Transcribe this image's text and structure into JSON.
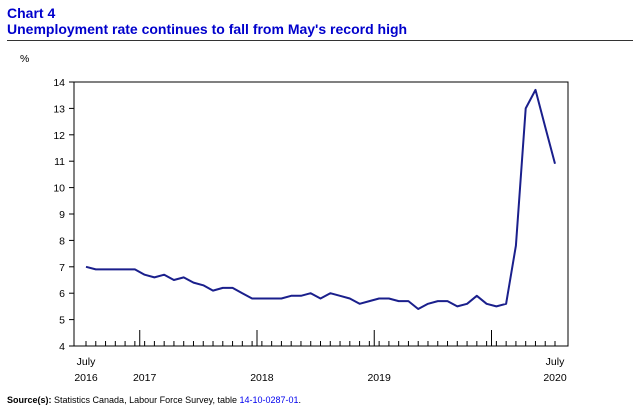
{
  "header": {
    "label": "Chart 4",
    "title": "Unemployment rate continues to fall from May's record high"
  },
  "source": {
    "label": "Source(s):",
    "text": "Statistics Canada, Labour Force Survey, table",
    "link": "14-10-0287-01",
    "end": "."
  },
  "colors": {
    "line": "#1a1f8c",
    "title": "#0000cc",
    "link": "#0000ee"
  },
  "chart_data": {
    "type": "line",
    "title": "Unemployment rate continues to fall from May's record high",
    "ylabel": "%",
    "xlabel": "",
    "ylim": [
      4,
      14
    ],
    "yticks": [
      4,
      5,
      6,
      7,
      8,
      9,
      10,
      11,
      12,
      13,
      14
    ],
    "grid": false,
    "x_tick_labels": [
      {
        "month_index": 0,
        "line1": "July",
        "line2": "2016"
      },
      {
        "month_index": 6,
        "line1": "",
        "line2": "2017"
      },
      {
        "month_index": 18,
        "line1": "",
        "line2": "2018"
      },
      {
        "month_index": 30,
        "line1": "",
        "line2": "2019"
      },
      {
        "month_index": 48,
        "line1": "July",
        "line2": "2020"
      }
    ],
    "x_start": "2016-07",
    "x_end": "2020-07",
    "series": [
      {
        "values": [
          7.0,
          6.9,
          6.9,
          6.9,
          6.9,
          6.9,
          6.7,
          6.6,
          6.7,
          6.5,
          6.6,
          6.4,
          6.3,
          6.1,
          6.2,
          6.2,
          6.0,
          5.8,
          5.8,
          5.8,
          5.8,
          5.9,
          5.9,
          6.0,
          5.8,
          6.0,
          5.9,
          5.8,
          5.6,
          5.7,
          5.8,
          5.8,
          5.7,
          5.7,
          5.4,
          5.6,
          5.7,
          5.7,
          5.5,
          5.6,
          5.9,
          5.6,
          5.5,
          5.6,
          7.8,
          13.0,
          13.7,
          12.3,
          10.9
        ]
      }
    ]
  }
}
